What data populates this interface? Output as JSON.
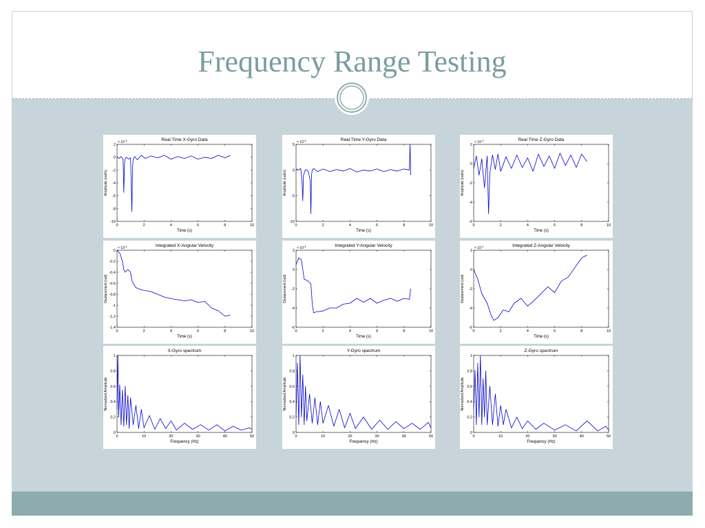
{
  "slide": {
    "title": "Frequency Range Testing"
  },
  "colors": {
    "background_body": "#c7d4da",
    "footer_band": "#8eacad",
    "title_color": "#7a9ca0",
    "series": "#0000cc"
  },
  "chart_data": [
    {
      "type": "line",
      "title": "Real Time X-Gyro Data",
      "xlabel": "Time (s)",
      "ylabel": "Amplitude (rad/s)",
      "exponent": [
        "× 10",
        "-3"
      ],
      "xlim": [
        0,
        10
      ],
      "ylim": [
        -10,
        2
      ],
      "xticks": [
        0,
        2,
        4,
        6,
        8,
        10
      ],
      "yticks": [
        -10,
        -8,
        -6,
        -4,
        -2,
        0,
        2
      ],
      "series": [
        {
          "x": [
            0,
            0.15,
            0.3,
            0.45,
            0.5,
            0.55,
            0.6,
            0.7,
            0.85,
            1.0,
            1.05,
            1.1,
            1.15,
            1.2,
            1.3,
            1.5,
            1.8,
            2.1,
            2.5,
            3.0,
            3.5,
            4.0,
            4.5,
            5.0,
            5.5,
            6.0,
            6.5,
            7.0,
            7.5,
            8.0,
            8.4
          ],
          "y": [
            0.1,
            -0.2,
            0.1,
            -0.3,
            -5.5,
            -1.0,
            -0.2,
            0.0,
            -0.3,
            -0.1,
            -4.0,
            -8.5,
            -1.5,
            -0.3,
            0.1,
            -0.4,
            0.3,
            -0.2,
            0.2,
            -0.1,
            0.3,
            -0.3,
            0.1,
            -0.2,
            0.2,
            -0.3,
            0.0,
            -0.2,
            0.3,
            -0.1,
            0.3
          ]
        }
      ]
    },
    {
      "type": "line",
      "title": "Real Time Y-Gyro Data",
      "xlabel": "Time (s)",
      "ylabel": "Amplitude (rad/s)",
      "exponent": [
        "× 10",
        "-3"
      ],
      "xlim": [
        0,
        10
      ],
      "ylim": [
        -10,
        5
      ],
      "xticks": [
        0,
        2,
        4,
        6,
        8,
        10
      ],
      "yticks": [
        -10,
        -5,
        0,
        5
      ],
      "series": [
        {
          "x": [
            0,
            0.2,
            0.35,
            0.45,
            0.5,
            0.55,
            0.7,
            0.9,
            1.05,
            1.1,
            1.15,
            1.2,
            1.3,
            1.6,
            2.0,
            2.5,
            3.0,
            3.5,
            4.0,
            4.5,
            5.0,
            5.5,
            6.0,
            6.5,
            7.0,
            7.5,
            8.0,
            8.4,
            8.45,
            8.5
          ],
          "y": [
            0.2,
            0.0,
            0.3,
            -2.5,
            -6.0,
            -1.0,
            0.1,
            -0.2,
            -2.0,
            -8.5,
            -1.0,
            0.0,
            0.3,
            -0.3,
            0.2,
            -0.3,
            0.1,
            -0.2,
            0.3,
            -0.4,
            0.0,
            -0.2,
            0.2,
            -0.3,
            0.1,
            -0.2,
            0.2,
            0.0,
            5.0,
            -1.0
          ]
        }
      ]
    },
    {
      "type": "line",
      "title": "Real Time Z-Gyro Data",
      "xlabel": "Time (s)",
      "ylabel": "Amplitude (rad/s)",
      "exponent": [
        "× 10",
        "-3"
      ],
      "xlim": [
        0,
        10
      ],
      "ylim": [
        -6,
        2
      ],
      "xticks": [
        0,
        2,
        4,
        6,
        8,
        10
      ],
      "yticks": [
        -6,
        -4,
        -2,
        0,
        2
      ],
      "series": [
        {
          "x": [
            0,
            0.2,
            0.4,
            0.6,
            0.8,
            1.0,
            1.1,
            1.2,
            1.4,
            1.6,
            1.8,
            2.0,
            2.4,
            2.8,
            3.2,
            3.6,
            4.0,
            4.4,
            4.8,
            5.2,
            5.6,
            6.0,
            6.4,
            6.8,
            7.2,
            7.6,
            8.0,
            8.4
          ],
          "y": [
            -0.5,
            0.8,
            -1.2,
            0.5,
            -2.5,
            0.8,
            -5.2,
            -1.0,
            0.9,
            -0.6,
            1.0,
            -0.8,
            0.7,
            -0.5,
            0.9,
            -0.4,
            0.6,
            -0.8,
            1.0,
            -0.3,
            0.8,
            -0.5,
            1.1,
            -0.2,
            0.9,
            -0.4,
            1.0,
            0.2
          ]
        }
      ]
    },
    {
      "type": "line",
      "title": "Integrated X-Angular Velocity",
      "xlabel": "Time (s)",
      "ylabel": "Deplacement (rad)",
      "exponent": [
        "× 10",
        "-3"
      ],
      "xlim": [
        0,
        10
      ],
      "ylim": [
        -1.4,
        0
      ],
      "xticks": [
        0,
        2,
        4,
        6,
        8,
        10
      ],
      "yticks": [
        -1.4,
        -1.2,
        -1.0,
        -0.8,
        -0.6,
        -0.4,
        -0.2,
        0
      ],
      "series": [
        {
          "x": [
            0,
            0.2,
            0.4,
            0.5,
            0.6,
            0.8,
            1.0,
            1.1,
            1.2,
            1.4,
            1.8,
            2.5,
            3.0,
            3.5,
            4.0,
            4.5,
            5.0,
            5.5,
            6.0,
            6.5,
            7.0,
            7.5,
            8.0,
            8.4
          ],
          "y": [
            0.0,
            -0.05,
            -0.2,
            -0.35,
            -0.4,
            -0.35,
            -0.4,
            -0.55,
            -0.6,
            -0.68,
            -0.72,
            -0.75,
            -0.8,
            -0.85,
            -0.88,
            -0.9,
            -0.92,
            -0.9,
            -0.95,
            -0.93,
            -1.05,
            -1.1,
            -1.2,
            -1.18
          ]
        }
      ]
    },
    {
      "type": "line",
      "title": "Integrated Y-Angular Velocity",
      "xlabel": "Time (s)",
      "ylabel": "Deplacement (rad)",
      "exponent": [
        "× 10",
        "-4"
      ],
      "xlim": [
        0,
        10
      ],
      "ylim": [
        -6,
        2
      ],
      "xticks": [
        0,
        2,
        4,
        6,
        8,
        10
      ],
      "yticks": [
        -6,
        -4,
        -2,
        0,
        2
      ],
      "series": [
        {
          "x": [
            0,
            0.2,
            0.4,
            0.5,
            0.6,
            0.9,
            1.1,
            1.2,
            1.3,
            1.5,
            2.0,
            2.5,
            3.0,
            3.5,
            4.0,
            4.5,
            5.0,
            5.5,
            6.0,
            6.5,
            7.0,
            7.5,
            8.0,
            8.4,
            8.5
          ],
          "y": [
            0.5,
            1.2,
            1.0,
            0.0,
            -1.0,
            -1.2,
            -1.5,
            -3.5,
            -4.5,
            -4.4,
            -4.3,
            -4.0,
            -4.0,
            -3.6,
            -3.5,
            -3.0,
            -3.4,
            -3.0,
            -3.5,
            -3.2,
            -3.0,
            -3.3,
            -3.0,
            -3.1,
            -2.0
          ]
        }
      ]
    },
    {
      "type": "line",
      "title": "Integrated Z-Angular Velocity",
      "xlabel": "Time (s)",
      "ylabel": "Deplacement (rad)",
      "exponent": [
        "× 10",
        "-4"
      ],
      "xlim": [
        0,
        10
      ],
      "ylim": [
        -6,
        2
      ],
      "xticks": [
        0,
        2,
        4,
        6,
        8,
        10
      ],
      "yticks": [
        -6,
        -4,
        -2,
        0,
        2
      ],
      "series": [
        {
          "x": [
            0,
            0.3,
            0.6,
            1.0,
            1.3,
            1.5,
            1.8,
            2.2,
            2.6,
            3.0,
            3.5,
            4.0,
            4.5,
            5.0,
            5.5,
            6.0,
            6.5,
            7.0,
            7.5,
            8.0,
            8.4
          ],
          "y": [
            0.0,
            -1.0,
            -2.5,
            -3.5,
            -4.8,
            -5.3,
            -5.0,
            -4.2,
            -4.4,
            -3.5,
            -3.0,
            -3.8,
            -3.2,
            -2.5,
            -1.8,
            -2.4,
            -1.2,
            -0.8,
            0.2,
            1.2,
            1.5
          ]
        }
      ]
    },
    {
      "type": "line",
      "title": "X-Gyro spectrum",
      "xlabel": "Frequency (Hz)",
      "ylabel": "Normalized Amplitude",
      "xlim": [
        0,
        50
      ],
      "ylim": [
        0,
        1
      ],
      "xticks": [
        0,
        10,
        20,
        30,
        40,
        50
      ],
      "yticks": [
        0,
        0.2,
        0.4,
        0.6,
        0.8,
        1
      ],
      "series": [
        {
          "x": [
            0,
            0.3,
            0.6,
            1,
            1.5,
            2,
            2.5,
            3,
            3.5,
            4,
            4.5,
            5,
            6,
            7,
            8,
            9,
            10,
            12,
            14,
            16,
            18,
            20,
            22,
            25,
            28,
            31,
            34,
            37,
            40,
            43,
            46,
            49,
            50
          ],
          "y": [
            0.3,
            1.0,
            0.2,
            0.62,
            0.1,
            0.55,
            0.08,
            0.6,
            0.1,
            0.48,
            0.05,
            0.45,
            0.1,
            0.35,
            0.05,
            0.3,
            0.06,
            0.22,
            0.04,
            0.18,
            0.05,
            0.15,
            0.03,
            0.12,
            0.04,
            0.1,
            0.03,
            0.1,
            0.02,
            0.08,
            0.03,
            0.06,
            0.04
          ]
        }
      ]
    },
    {
      "type": "line",
      "title": "Y-Gyro spectrum",
      "xlabel": "Frequency (Hz)",
      "ylabel": "Normalized Amplitude",
      "xlim": [
        0,
        50
      ],
      "ylim": [
        0,
        1
      ],
      "xticks": [
        0,
        10,
        20,
        30,
        40,
        50
      ],
      "yticks": [
        0,
        0.2,
        0.4,
        0.6,
        0.8,
        1
      ],
      "series": [
        {
          "x": [
            0,
            0.5,
            1,
            1.5,
            2,
            2.5,
            3,
            3.5,
            4,
            5,
            6,
            7,
            8,
            9,
            10,
            12,
            14,
            16,
            18,
            20,
            22,
            25,
            28,
            31,
            34,
            37,
            40,
            43,
            46,
            49,
            50
          ],
          "y": [
            0.2,
            0.9,
            0.1,
            1.0,
            0.2,
            0.75,
            0.1,
            0.6,
            0.15,
            0.5,
            0.12,
            0.45,
            0.1,
            0.4,
            0.12,
            0.35,
            0.08,
            0.3,
            0.06,
            0.25,
            0.05,
            0.2,
            0.04,
            0.16,
            0.04,
            0.14,
            0.05,
            0.12,
            0.04,
            0.13,
            0.06
          ]
        }
      ]
    },
    {
      "type": "line",
      "title": "Z-Gyro spectrum",
      "xlabel": "Frequency (Hz)",
      "ylabel": "Normalized Amplitude",
      "xlim": [
        0,
        50
      ],
      "ylim": [
        0,
        1
      ],
      "xticks": [
        0,
        10,
        20,
        30,
        40,
        50
      ],
      "yticks": [
        0,
        0.2,
        0.4,
        0.6,
        0.8,
        1
      ],
      "series": [
        {
          "x": [
            0,
            0.5,
            1,
            1.5,
            2,
            2.5,
            3,
            3.5,
            4,
            4.5,
            5,
            6,
            7,
            8,
            9,
            10,
            11,
            12,
            14,
            16,
            18,
            20,
            23,
            26,
            30,
            34,
            38,
            42,
            46,
            49,
            50
          ],
          "y": [
            0.3,
            0.8,
            0.1,
            0.9,
            0.2,
            1.0,
            0.1,
            0.7,
            0.2,
            0.8,
            0.1,
            0.6,
            0.1,
            0.5,
            0.08,
            0.35,
            0.1,
            0.3,
            0.06,
            0.2,
            0.05,
            0.15,
            0.04,
            0.12,
            0.03,
            0.1,
            0.02,
            0.15,
            0.02,
            0.08,
            0.03
          ]
        }
      ]
    }
  ]
}
